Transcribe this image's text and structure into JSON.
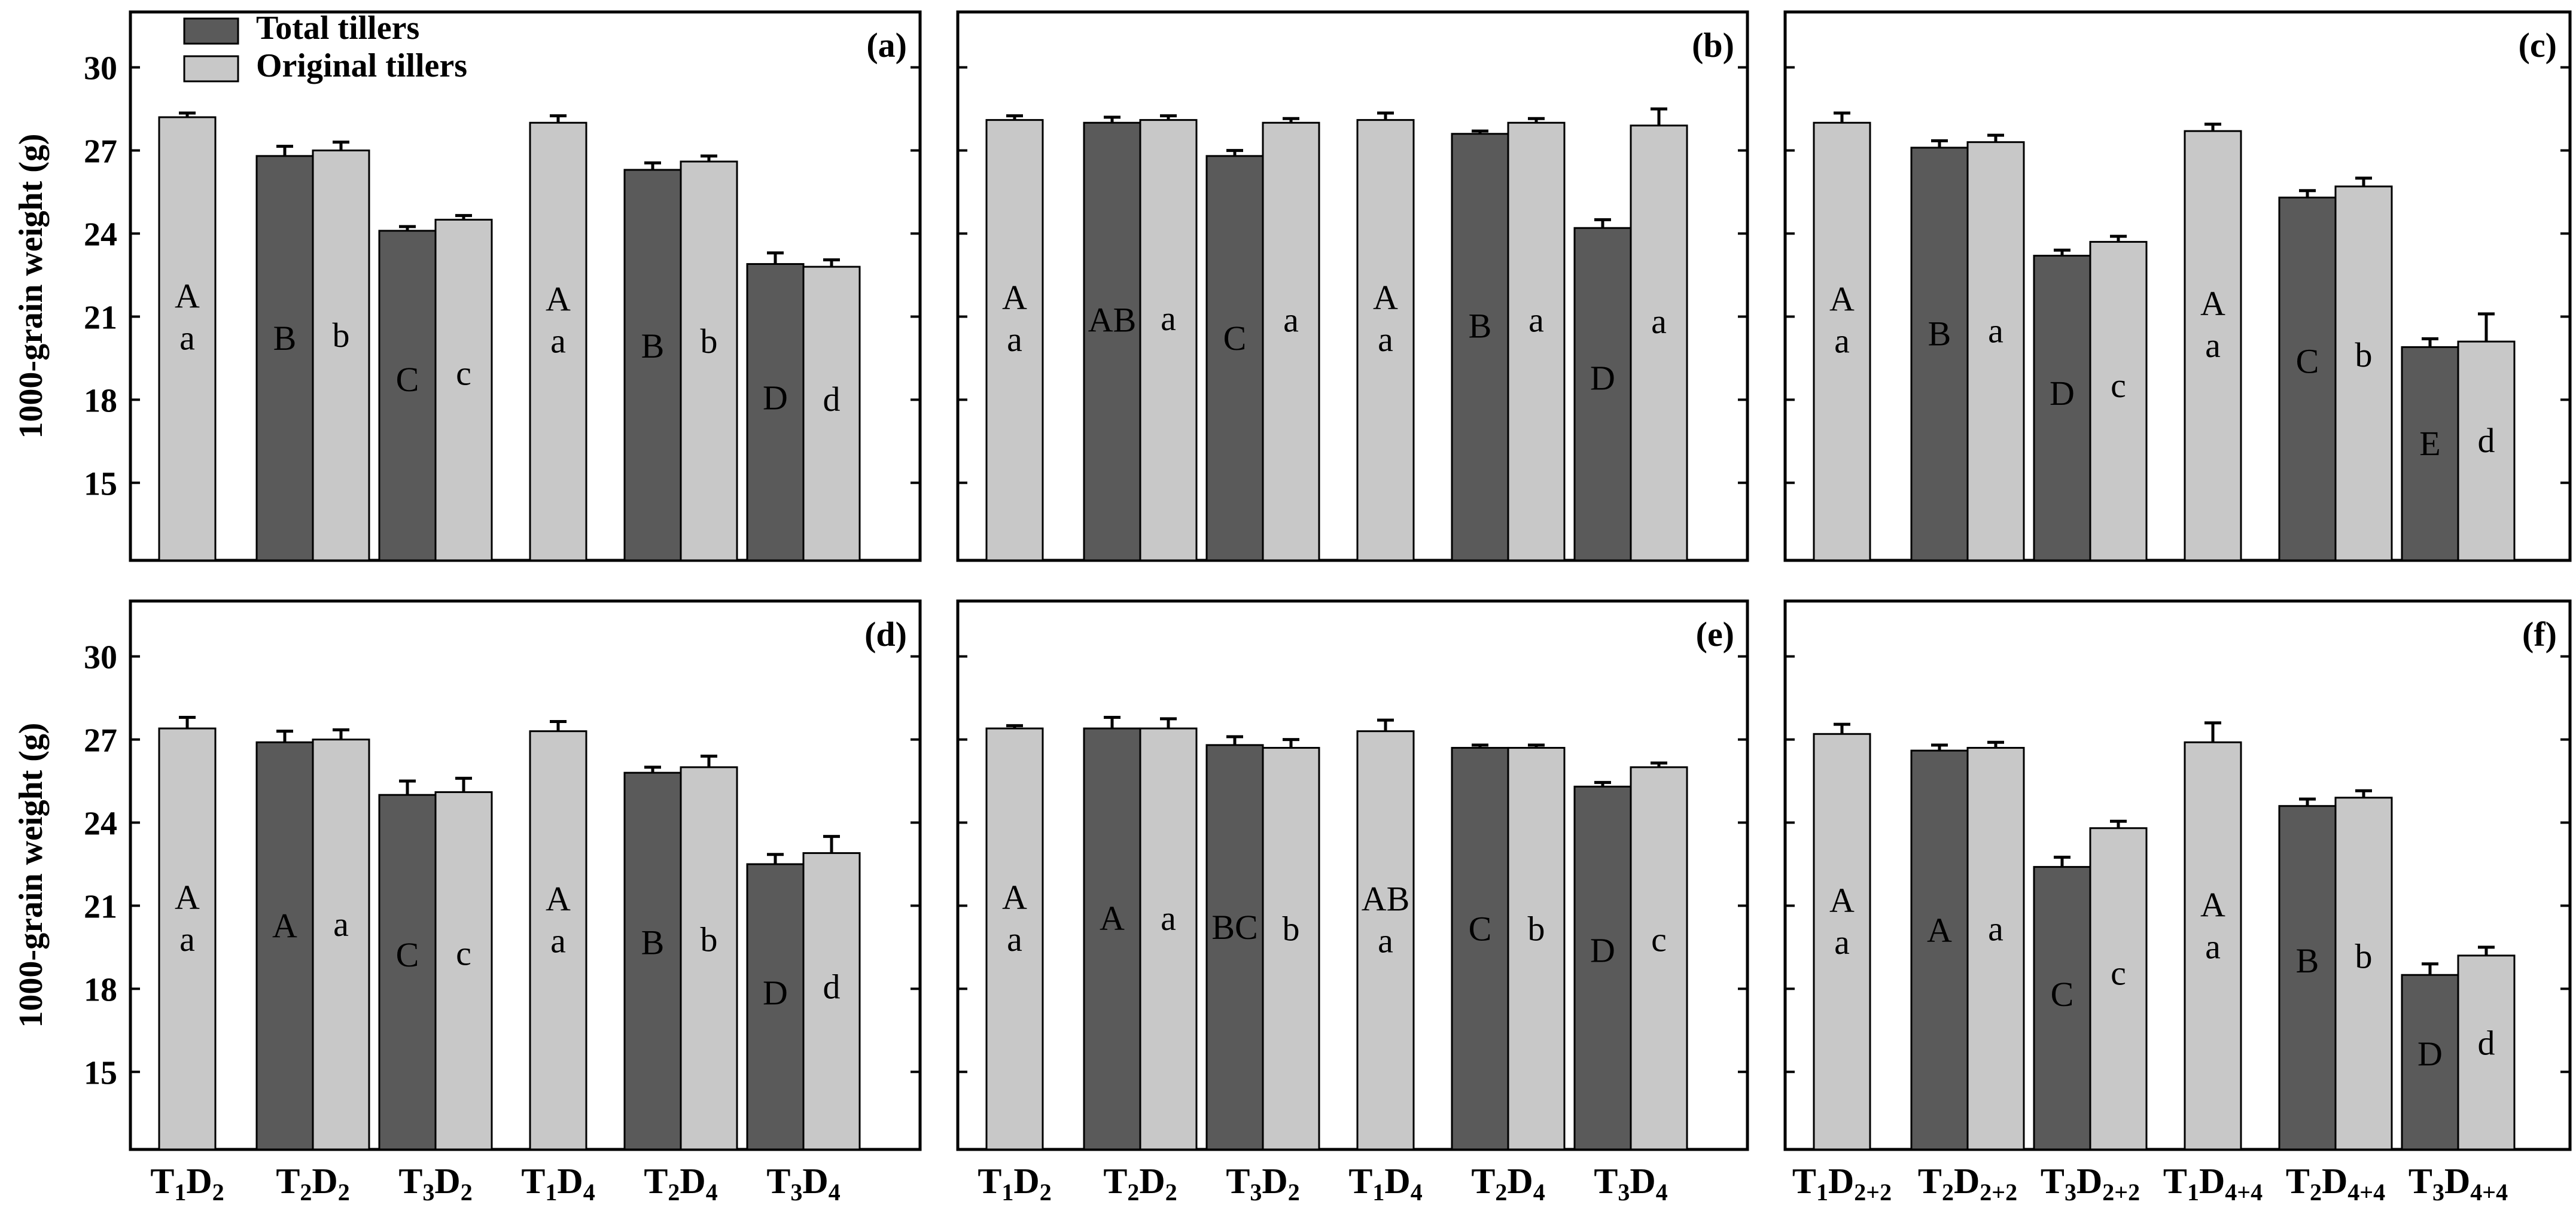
{
  "figure": {
    "ylabel": "1000-grain weight (g)",
    "colors": {
      "total": "#5a5a5a",
      "original": "#c8c8c8",
      "frame": "#000000"
    },
    "yticks": [
      15,
      18,
      21,
      24,
      27,
      30
    ],
    "ylim": [
      12.2,
      32
    ],
    "legend": {
      "total_label": "Total tillers",
      "original_label": "Original tillers"
    }
  },
  "chart_data": [
    {
      "type": "bar",
      "panel": "(a)",
      "groups": [
        {
          "label": "T1D2",
          "total": null,
          "original": {
            "value": 28.2,
            "err": 0.15,
            "letter": "A\na"
          }
        },
        {
          "label": "T2D2",
          "total": {
            "value": 26.8,
            "err": 0.35,
            "letter": "B"
          },
          "original": {
            "value": 27.0,
            "err": 0.3,
            "letter": "b"
          }
        },
        {
          "label": "T3D2",
          "total": {
            "value": 24.1,
            "err": 0.15,
            "letter": "C"
          },
          "original": {
            "value": 24.5,
            "err": 0.15,
            "letter": "c"
          }
        },
        {
          "label": "T1D4",
          "total": null,
          "original": {
            "value": 28.0,
            "err": 0.25,
            "letter": "A\na"
          }
        },
        {
          "label": "T2D4",
          "total": {
            "value": 26.3,
            "err": 0.25,
            "letter": "B"
          },
          "original": {
            "value": 26.6,
            "err": 0.2,
            "letter": "b"
          }
        },
        {
          "label": "T3D4",
          "total": {
            "value": 22.9,
            "err": 0.4,
            "letter": "D"
          },
          "original": {
            "value": 22.8,
            "err": 0.25,
            "letter": "d"
          }
        }
      ]
    },
    {
      "type": "bar",
      "panel": "(b)",
      "groups": [
        {
          "label": "T1D2",
          "total": null,
          "original": {
            "value": 28.1,
            "err": 0.15,
            "letter": "A\na"
          }
        },
        {
          "label": "T2D2",
          "total": {
            "value": 28.0,
            "err": 0.2,
            "letter": "AB"
          },
          "original": {
            "value": 28.1,
            "err": 0.15,
            "letter": "a"
          }
        },
        {
          "label": "T3D2",
          "total": {
            "value": 26.8,
            "err": 0.2,
            "letter": "C"
          },
          "original": {
            "value": 28.0,
            "err": 0.15,
            "letter": "a"
          }
        },
        {
          "label": "T1D4",
          "total": null,
          "original": {
            "value": 28.1,
            "err": 0.25,
            "letter": "A\na"
          }
        },
        {
          "label": "T2D4",
          "total": {
            "value": 27.6,
            "err": 0.1,
            "letter": "B"
          },
          "original": {
            "value": 28.0,
            "err": 0.15,
            "letter": "a"
          }
        },
        {
          "label": "T3D4",
          "total": {
            "value": 24.2,
            "err": 0.3,
            "letter": "D"
          },
          "original": {
            "value": 27.9,
            "err": 0.6,
            "letter": "a"
          }
        }
      ]
    },
    {
      "type": "bar",
      "panel": "(c)",
      "groups": [
        {
          "label": "T1D2+2",
          "total": null,
          "original": {
            "value": 28.0,
            "err": 0.35,
            "letter": "A\na"
          }
        },
        {
          "label": "T2D2+2",
          "total": {
            "value": 27.1,
            "err": 0.25,
            "letter": "B"
          },
          "original": {
            "value": 27.3,
            "err": 0.25,
            "letter": "a"
          }
        },
        {
          "label": "T3D2+2",
          "total": {
            "value": 23.2,
            "err": 0.2,
            "letter": "D"
          },
          "original": {
            "value": 23.7,
            "err": 0.2,
            "letter": "c"
          }
        },
        {
          "label": "T1D4+4",
          "total": null,
          "original": {
            "value": 27.7,
            "err": 0.25,
            "letter": "A\na"
          }
        },
        {
          "label": "T2D4+4",
          "total": {
            "value": 25.3,
            "err": 0.25,
            "letter": "C"
          },
          "original": {
            "value": 25.7,
            "err": 0.3,
            "letter": "b"
          }
        },
        {
          "label": "T3D4+4",
          "total": {
            "value": 19.9,
            "err": 0.3,
            "letter": "E"
          },
          "original": {
            "value": 20.1,
            "err": 1.0,
            "letter": "d"
          }
        }
      ]
    },
    {
      "type": "bar",
      "panel": "(d)",
      "groups": [
        {
          "label": "T1D2",
          "total": null,
          "original": {
            "value": 27.4,
            "err": 0.4,
            "letter": "A\na"
          }
        },
        {
          "label": "T2D2",
          "total": {
            "value": 26.9,
            "err": 0.4,
            "letter": "A"
          },
          "original": {
            "value": 27.0,
            "err": 0.35,
            "letter": "a"
          }
        },
        {
          "label": "T3D2",
          "total": {
            "value": 25.0,
            "err": 0.5,
            "letter": "C"
          },
          "original": {
            "value": 25.1,
            "err": 0.5,
            "letter": "c"
          }
        },
        {
          "label": "T1D4",
          "total": null,
          "original": {
            "value": 27.3,
            "err": 0.35,
            "letter": "A\na"
          }
        },
        {
          "label": "T2D4",
          "total": {
            "value": 25.8,
            "err": 0.2,
            "letter": "B"
          },
          "original": {
            "value": 26.0,
            "err": 0.4,
            "letter": "b"
          }
        },
        {
          "label": "T3D4",
          "total": {
            "value": 22.5,
            "err": 0.35,
            "letter": "D"
          },
          "original": {
            "value": 22.9,
            "err": 0.6,
            "letter": "d"
          }
        }
      ]
    },
    {
      "type": "bar",
      "panel": "(e)",
      "groups": [
        {
          "label": "T1D2",
          "total": null,
          "original": {
            "value": 27.4,
            "err": 0.1,
            "letter": "A\na"
          }
        },
        {
          "label": "T2D2",
          "total": {
            "value": 27.4,
            "err": 0.4,
            "letter": "A"
          },
          "original": {
            "value": 27.4,
            "err": 0.35,
            "letter": "a"
          }
        },
        {
          "label": "T3D2",
          "total": {
            "value": 26.8,
            "err": 0.3,
            "letter": "BC"
          },
          "original": {
            "value": 26.7,
            "err": 0.3,
            "letter": "b"
          }
        },
        {
          "label": "T1D4",
          "total": null,
          "original": {
            "value": 27.3,
            "err": 0.4,
            "letter": "AB\na"
          }
        },
        {
          "label": "T2D4",
          "total": {
            "value": 26.7,
            "err": 0.1,
            "letter": "C"
          },
          "original": {
            "value": 26.7,
            "err": 0.1,
            "letter": "b"
          }
        },
        {
          "label": "T3D4",
          "total": {
            "value": 25.3,
            "err": 0.15,
            "letter": "D"
          },
          "original": {
            "value": 26.0,
            "err": 0.15,
            "letter": "c"
          }
        }
      ]
    },
    {
      "type": "bar",
      "panel": "(f)",
      "groups": [
        {
          "label": "T1D2+2",
          "total": null,
          "original": {
            "value": 27.2,
            "err": 0.35,
            "letter": "A\na"
          }
        },
        {
          "label": "T2D2+2",
          "total": {
            "value": 26.6,
            "err": 0.2,
            "letter": "A"
          },
          "original": {
            "value": 26.7,
            "err": 0.2,
            "letter": "a"
          }
        },
        {
          "label": "T3D2+2",
          "total": {
            "value": 22.4,
            "err": 0.35,
            "letter": "C"
          },
          "original": {
            "value": 23.8,
            "err": 0.25,
            "letter": "c"
          }
        },
        {
          "label": "T1D4+4",
          "total": null,
          "original": {
            "value": 26.9,
            "err": 0.7,
            "letter": "A\na"
          }
        },
        {
          "label": "T2D4+4",
          "total": {
            "value": 24.6,
            "err": 0.25,
            "letter": "B"
          },
          "original": {
            "value": 24.9,
            "err": 0.25,
            "letter": "b"
          }
        },
        {
          "label": "T3D4+4",
          "total": {
            "value": 18.5,
            "err": 0.4,
            "letter": "D"
          },
          "original": {
            "value": 19.2,
            "err": 0.3,
            "letter": "d"
          }
        }
      ]
    }
  ]
}
